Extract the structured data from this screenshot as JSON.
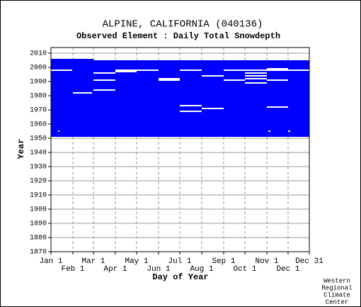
{
  "chart_data": {
    "type": "coverage",
    "title": "ALPINE, CALIFORNIA   (040136)",
    "subtitle": "Observed Element : Daily Total Snowdepth",
    "x_label": "Day of Year",
    "y_label": "Year",
    "footer": [
      "Western",
      "Regional",
      "Climate",
      "Center"
    ],
    "color": "#0000ff",
    "gap_color": "#ffffff",
    "grid": true,
    "xlim": [
      1,
      366
    ],
    "ylim": [
      1870,
      2014
    ],
    "xticks": [
      {
        "value": 1,
        "label": "Jan 1"
      },
      {
        "value": 32,
        "label": "Feb 1"
      },
      {
        "value": 61,
        "label": "Mar 1"
      },
      {
        "value": 92,
        "label": "Apr 1"
      },
      {
        "value": 122,
        "label": "May 1"
      },
      {
        "value": 153,
        "label": "Jun 1"
      },
      {
        "value": 183,
        "label": "Jul 1"
      },
      {
        "value": 214,
        "label": "Aug 1"
      },
      {
        "value": 245,
        "label": "Sep 1"
      },
      {
        "value": 275,
        "label": "Oct 1"
      },
      {
        "value": 306,
        "label": "Nov 1"
      },
      {
        "value": 336,
        "label": "Dec 1"
      },
      {
        "value": 366,
        "label": "Dec 31"
      }
    ],
    "yticks": [
      1870,
      1880,
      1890,
      1900,
      1910,
      1920,
      1930,
      1940,
      1950,
      1960,
      1970,
      1980,
      1990,
      2000,
      2010
    ],
    "coverage": [
      {
        "day_start": 1,
        "day_end": 61,
        "year_start": 1951,
        "year_end": 2006
      },
      {
        "day_start": 61,
        "day_end": 366,
        "year_start": 1951,
        "year_end": 2005
      }
    ],
    "gaps": [
      {
        "year": 1998,
        "day_start": 1,
        "day_end": 31
      },
      {
        "year": 1955,
        "day_start": 11,
        "day_end": 13
      },
      {
        "year": 1982,
        "day_start": 32,
        "day_end": 59
      },
      {
        "year": 1996,
        "day_start": 61,
        "day_end": 92
      },
      {
        "year": 1991,
        "day_start": 61,
        "day_end": 92
      },
      {
        "year": 1984,
        "day_start": 61,
        "day_end": 92
      },
      {
        "year": 1997,
        "day_start": 92,
        "day_end": 122
      },
      {
        "year": 1998,
        "day_start": 92,
        "day_end": 122
      },
      {
        "year": 1998,
        "day_start": 122,
        "day_end": 153
      },
      {
        "year": 1992,
        "day_start": 153,
        "day_end": 183
      },
      {
        "year": 1991,
        "day_start": 153,
        "day_end": 183
      },
      {
        "year": 1998,
        "day_start": 183,
        "day_end": 214
      },
      {
        "year": 1973,
        "day_start": 183,
        "day_end": 214
      },
      {
        "year": 1969,
        "day_start": 183,
        "day_end": 214
      },
      {
        "year": 1994,
        "day_start": 214,
        "day_end": 245
      },
      {
        "year": 1971,
        "day_start": 214,
        "day_end": 245
      },
      {
        "year": 1998,
        "day_start": 245,
        "day_end": 275
      },
      {
        "year": 1991,
        "day_start": 245,
        "day_end": 275
      },
      {
        "year": 1998,
        "day_start": 275,
        "day_end": 306
      },
      {
        "year": 1996,
        "day_start": 275,
        "day_end": 306
      },
      {
        "year": 1994,
        "day_start": 275,
        "day_end": 306
      },
      {
        "year": 1992,
        "day_start": 275,
        "day_end": 306
      },
      {
        "year": 1989,
        "day_start": 275,
        "day_end": 306
      },
      {
        "year": 1998,
        "day_start": 306,
        "day_end": 336
      },
      {
        "year": 1999,
        "day_start": 306,
        "day_end": 336
      },
      {
        "year": 1991,
        "day_start": 306,
        "day_end": 336
      },
      {
        "year": 1972,
        "day_start": 306,
        "day_end": 336
      },
      {
        "year": 1955,
        "day_start": 308,
        "day_end": 311
      },
      {
        "year": 1955,
        "day_start": 336,
        "day_end": 339
      },
      {
        "year": 1998,
        "day_start": 336,
        "day_end": 366
      }
    ]
  }
}
